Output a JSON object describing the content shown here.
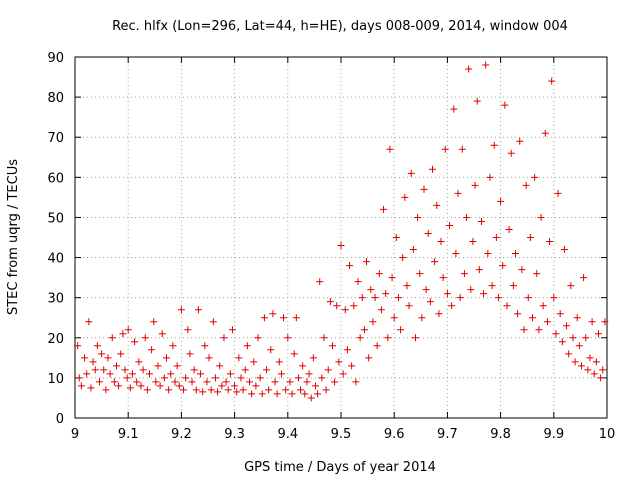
{
  "chart_data": {
    "type": "scatter",
    "title": "Rec. hlfx (Lon=296, Lat=44, h=HE), days 008-009, 2014, window 004",
    "xlabel": "GPS time / Days of year 2014",
    "ylabel": "STEC from uqrg / TECUs",
    "xlim": [
      9,
      10
    ],
    "ylim": [
      0,
      90
    ],
    "x_ticks": [
      9,
      9.1,
      9.2,
      9.3,
      9.4,
      9.5,
      9.6,
      9.7,
      9.8,
      9.9,
      10
    ],
    "x_tick_labels": [
      "9",
      "9.1",
      "9.2",
      "9.3",
      "9.4",
      "9.5",
      "9.6",
      "9.7",
      "9.8",
      "9.9",
      "10"
    ],
    "y_ticks": [
      0,
      10,
      20,
      30,
      40,
      50,
      60,
      70,
      80,
      90
    ],
    "y_tick_labels": [
      "0",
      "10",
      "20",
      "30",
      "40",
      "50",
      "60",
      "70",
      "80",
      "90"
    ],
    "grid": true,
    "marker": "plus",
    "color": "#e00000",
    "series": [
      {
        "name": "STEC",
        "points": [
          [
            9.005,
            18
          ],
          [
            9.008,
            10
          ],
          [
            9.012,
            8
          ],
          [
            9.018,
            15
          ],
          [
            9.022,
            11
          ],
          [
            9.026,
            24
          ],
          [
            9.03,
            7.5
          ],
          [
            9.034,
            14
          ],
          [
            9.038,
            12
          ],
          [
            9.042,
            18
          ],
          [
            9.046,
            9
          ],
          [
            9.05,
            16
          ],
          [
            9.054,
            12
          ],
          [
            9.058,
            7
          ],
          [
            9.062,
            15
          ],
          [
            9.066,
            11
          ],
          [
            9.07,
            20
          ],
          [
            9.074,
            9
          ],
          [
            9.078,
            13
          ],
          [
            9.082,
            8
          ],
          [
            9.086,
            16
          ],
          [
            9.09,
            21
          ],
          [
            9.094,
            12
          ],
          [
            9.098,
            10
          ],
          [
            9.1,
            22
          ],
          [
            9.104,
            7.5
          ],
          [
            9.108,
            11
          ],
          [
            9.112,
            19
          ],
          [
            9.116,
            9
          ],
          [
            9.12,
            14
          ],
          [
            9.124,
            8
          ],
          [
            9.128,
            12
          ],
          [
            9.132,
            20
          ],
          [
            9.136,
            7
          ],
          [
            9.14,
            11
          ],
          [
            9.144,
            17
          ],
          [
            9.148,
            24
          ],
          [
            9.152,
            9
          ],
          [
            9.156,
            13
          ],
          [
            9.16,
            8
          ],
          [
            9.164,
            21
          ],
          [
            9.168,
            10
          ],
          [
            9.172,
            15
          ],
          [
            9.176,
            7
          ],
          [
            9.18,
            11
          ],
          [
            9.184,
            18
          ],
          [
            9.188,
            9
          ],
          [
            9.192,
            13
          ],
          [
            9.196,
            8
          ],
          [
            9.2,
            27
          ],
          [
            9.204,
            7
          ],
          [
            9.208,
            10
          ],
          [
            9.212,
            22
          ],
          [
            9.216,
            16
          ],
          [
            9.22,
            9
          ],
          [
            9.224,
            12
          ],
          [
            9.228,
            7
          ],
          [
            9.232,
            27
          ],
          [
            9.236,
            11
          ],
          [
            9.24,
            6.5
          ],
          [
            9.244,
            18
          ],
          [
            9.248,
            9
          ],
          [
            9.252,
            15
          ],
          [
            9.256,
            7
          ],
          [
            9.26,
            24
          ],
          [
            9.264,
            10
          ],
          [
            9.268,
            6.5
          ],
          [
            9.272,
            13
          ],
          [
            9.276,
            8
          ],
          [
            9.28,
            20
          ],
          [
            9.284,
            9
          ],
          [
            9.288,
            7
          ],
          [
            9.292,
            11
          ],
          [
            9.296,
            22
          ],
          [
            9.3,
            8
          ],
          [
            9.304,
            6.5
          ],
          [
            9.308,
            15
          ],
          [
            9.312,
            10
          ],
          [
            9.316,
            7
          ],
          [
            9.32,
            12
          ],
          [
            9.324,
            18
          ],
          [
            9.328,
            9
          ],
          [
            9.332,
            6
          ],
          [
            9.336,
            14
          ],
          [
            9.34,
            8
          ],
          [
            9.344,
            20
          ],
          [
            9.348,
            10
          ],
          [
            9.352,
            6
          ],
          [
            9.356,
            25
          ],
          [
            9.36,
            12
          ],
          [
            9.364,
            7
          ],
          [
            9.368,
            17
          ],
          [
            9.372,
            26
          ],
          [
            9.376,
            9
          ],
          [
            9.38,
            6
          ],
          [
            9.384,
            14
          ],
          [
            9.388,
            11
          ],
          [
            9.392,
            25
          ],
          [
            9.396,
            7
          ],
          [
            9.4,
            20
          ],
          [
            9.404,
            9
          ],
          [
            9.408,
            6
          ],
          [
            9.412,
            16
          ],
          [
            9.416,
            25
          ],
          [
            9.42,
            10
          ],
          [
            9.424,
            7
          ],
          [
            9.428,
            13
          ],
          [
            9.432,
            6
          ],
          [
            9.436,
            9
          ],
          [
            9.44,
            11
          ],
          [
            9.444,
            5
          ],
          [
            9.448,
            15
          ],
          [
            9.452,
            8
          ],
          [
            9.456,
            6
          ],
          [
            9.46,
            34
          ],
          [
            9.464,
            10
          ],
          [
            9.468,
            20
          ],
          [
            9.472,
            7
          ],
          [
            9.476,
            12
          ],
          [
            9.48,
            29
          ],
          [
            9.484,
            18
          ],
          [
            9.488,
            9
          ],
          [
            9.492,
            28
          ],
          [
            9.496,
            14
          ],
          [
            9.5,
            43
          ],
          [
            9.504,
            11
          ],
          [
            9.508,
            27
          ],
          [
            9.512,
            17
          ],
          [
            9.516,
            38
          ],
          [
            9.52,
            13
          ],
          [
            9.524,
            28
          ],
          [
            9.528,
            9
          ],
          [
            9.532,
            34
          ],
          [
            9.536,
            20
          ],
          [
            9.54,
            30
          ],
          [
            9.544,
            22
          ],
          [
            9.548,
            39
          ],
          [
            9.552,
            15
          ],
          [
            9.556,
            32
          ],
          [
            9.56,
            24
          ],
          [
            9.564,
            30
          ],
          [
            9.568,
            18
          ],
          [
            9.572,
            36
          ],
          [
            9.576,
            27
          ],
          [
            9.58,
            52
          ],
          [
            9.584,
            31
          ],
          [
            9.588,
            20
          ],
          [
            9.592,
            67
          ],
          [
            9.596,
            35
          ],
          [
            9.6,
            25
          ],
          [
            9.604,
            45
          ],
          [
            9.608,
            30
          ],
          [
            9.612,
            22
          ],
          [
            9.616,
            40
          ],
          [
            9.62,
            55
          ],
          [
            9.624,
            33
          ],
          [
            9.628,
            28
          ],
          [
            9.632,
            61
          ],
          [
            9.636,
            42
          ],
          [
            9.64,
            20
          ],
          [
            9.644,
            50
          ],
          [
            9.648,
            36
          ],
          [
            9.652,
            25
          ],
          [
            9.656,
            57
          ],
          [
            9.66,
            32
          ],
          [
            9.664,
            46
          ],
          [
            9.668,
            29
          ],
          [
            9.672,
            62
          ],
          [
            9.676,
            39
          ],
          [
            9.68,
            53
          ],
          [
            9.684,
            26
          ],
          [
            9.688,
            44
          ],
          [
            9.692,
            35
          ],
          [
            9.696,
            67
          ],
          [
            9.7,
            31
          ],
          [
            9.704,
            48
          ],
          [
            9.708,
            28
          ],
          [
            9.712,
            77
          ],
          [
            9.716,
            41
          ],
          [
            9.72,
            56
          ],
          [
            9.724,
            30
          ],
          [
            9.728,
            67
          ],
          [
            9.732,
            36
          ],
          [
            9.736,
            50
          ],
          [
            9.74,
            87
          ],
          [
            9.744,
            32
          ],
          [
            9.748,
            44
          ],
          [
            9.752,
            58
          ],
          [
            9.756,
            79
          ],
          [
            9.76,
            37
          ],
          [
            9.764,
            49
          ],
          [
            9.768,
            31
          ],
          [
            9.772,
            88
          ],
          [
            9.776,
            41
          ],
          [
            9.78,
            60
          ],
          [
            9.784,
            33
          ],
          [
            9.788,
            68
          ],
          [
            9.792,
            45
          ],
          [
            9.796,
            30
          ],
          [
            9.8,
            54
          ],
          [
            9.804,
            38
          ],
          [
            9.808,
            78
          ],
          [
            9.812,
            28
          ],
          [
            9.816,
            47
          ],
          [
            9.82,
            66
          ],
          [
            9.824,
            33
          ],
          [
            9.828,
            41
          ],
          [
            9.832,
            26
          ],
          [
            9.836,
            69
          ],
          [
            9.84,
            37
          ],
          [
            9.844,
            22
          ],
          [
            9.848,
            58
          ],
          [
            9.852,
            30
          ],
          [
            9.856,
            45
          ],
          [
            9.86,
            25
          ],
          [
            9.864,
            60
          ],
          [
            9.868,
            36
          ],
          [
            9.872,
            22
          ],
          [
            9.876,
            50
          ],
          [
            9.88,
            28
          ],
          [
            9.884,
            71
          ],
          [
            9.888,
            24
          ],
          [
            9.892,
            44
          ],
          [
            9.896,
            84
          ],
          [
            9.9,
            30
          ],
          [
            9.904,
            21
          ],
          [
            9.908,
            56
          ],
          [
            9.912,
            26
          ],
          [
            9.916,
            19
          ],
          [
            9.92,
            42
          ],
          [
            9.924,
            23
          ],
          [
            9.928,
            16
          ],
          [
            9.932,
            33
          ],
          [
            9.936,
            20
          ],
          [
            9.94,
            14
          ],
          [
            9.944,
            25
          ],
          [
            9.948,
            18
          ],
          [
            9.952,
            13
          ],
          [
            9.956,
            35
          ],
          [
            9.96,
            20
          ],
          [
            9.964,
            12
          ],
          [
            9.968,
            15
          ],
          [
            9.972,
            24
          ],
          [
            9.976,
            11
          ],
          [
            9.98,
            14
          ],
          [
            9.984,
            21
          ],
          [
            9.988,
            10
          ],
          [
            9.992,
            12
          ],
          [
            9.996,
            24
          ]
        ]
      }
    ]
  }
}
